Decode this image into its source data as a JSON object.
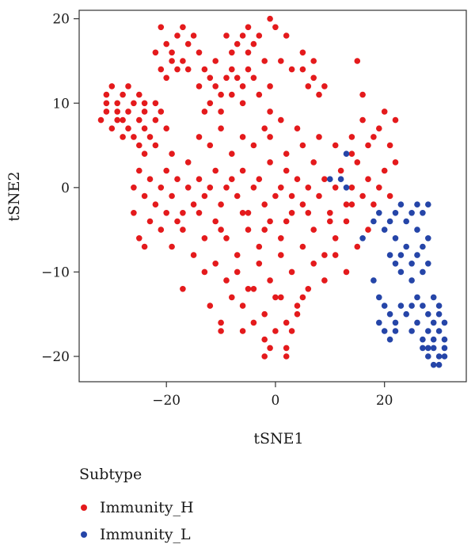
{
  "chart_data": {
    "type": "scatter",
    "title": "",
    "xlabel": "tSNE1",
    "ylabel": "tSNE2",
    "xlim": [
      -36,
      35
    ],
    "ylim": [
      -23,
      21
    ],
    "xticks": [
      -20,
      0,
      20
    ],
    "yticks": [
      -20,
      -10,
      0,
      10,
      20
    ],
    "xtick_labels": [
      "−20",
      "0",
      "20"
    ],
    "ytick_labels": [
      "−20",
      "−10",
      "0",
      "10",
      "20"
    ],
    "grid": false,
    "legend": {
      "title": "Subtype",
      "placement": "bottom-left"
    },
    "series": [
      {
        "name": "Immunity_H",
        "color": "#e41a1c",
        "points": [
          [
            -32,
            8
          ],
          [
            -31,
            9
          ],
          [
            -31,
            11
          ],
          [
            -30,
            7
          ],
          [
            -30,
            12
          ],
          [
            -29,
            9
          ],
          [
            -29,
            10
          ],
          [
            -28,
            8
          ],
          [
            -28,
            11
          ],
          [
            -27,
            7
          ],
          [
            -27,
            9
          ],
          [
            -26,
            10
          ],
          [
            -26,
            6
          ],
          [
            -25,
            8
          ],
          [
            -25,
            11
          ],
          [
            -24,
            7
          ],
          [
            -24,
            9
          ],
          [
            -23,
            6
          ],
          [
            -22,
            8
          ],
          [
            -22,
            10
          ],
          [
            -21,
            9
          ],
          [
            -20,
            7
          ],
          [
            -29,
            8
          ],
          [
            -31,
            10
          ],
          [
            -27,
            12
          ],
          [
            -25,
            5
          ],
          [
            -24,
            10
          ],
          [
            -28,
            6
          ],
          [
            -21,
            19
          ],
          [
            -20,
            17
          ],
          [
            -19,
            15
          ],
          [
            -18,
            14
          ],
          [
            -18,
            18
          ],
          [
            -17,
            19
          ],
          [
            -16,
            17
          ],
          [
            -15,
            18
          ],
          [
            -14,
            16
          ],
          [
            -21,
            14
          ],
          [
            -20,
            13
          ],
          [
            -19,
            16
          ],
          [
            -17,
            15
          ],
          [
            -22,
            16
          ],
          [
            -16,
            14
          ],
          [
            -13,
            9
          ],
          [
            -12,
            10
          ],
          [
            -11,
            12
          ],
          [
            -10,
            11
          ],
          [
            -9,
            13
          ],
          [
            -8,
            14
          ],
          [
            -7,
            13
          ],
          [
            -6,
            12
          ],
          [
            -5,
            14
          ],
          [
            -4,
            13
          ],
          [
            -10,
            9
          ],
          [
            -12,
            13
          ],
          [
            -8,
            11
          ],
          [
            -6,
            10
          ],
          [
            -9,
            18
          ],
          [
            -7,
            17
          ],
          [
            -6,
            18
          ],
          [
            -5,
            16
          ],
          [
            -4,
            17
          ],
          [
            -3,
            18
          ],
          [
            -8,
            16
          ],
          [
            -5,
            19
          ],
          [
            -1,
            20
          ],
          [
            0,
            19
          ],
          [
            -2,
            15
          ],
          [
            -1,
            12
          ],
          [
            1,
            15
          ],
          [
            3,
            14
          ],
          [
            2,
            18
          ],
          [
            5,
            14
          ],
          [
            6,
            12
          ],
          [
            7,
            13
          ],
          [
            8,
            11
          ],
          [
            9,
            12
          ],
          [
            5,
            16
          ],
          [
            7,
            15
          ],
          [
            15,
            15
          ],
          [
            16,
            11
          ],
          [
            14,
            6
          ],
          [
            -13,
            14
          ],
          [
            -11,
            15
          ],
          [
            -14,
            12
          ],
          [
            -3,
            11
          ],
          [
            -1,
            9
          ],
          [
            -26,
            0
          ],
          [
            -25,
            2
          ],
          [
            -24,
            -1
          ],
          [
            -23,
            1
          ],
          [
            -22,
            -2
          ],
          [
            -21,
            0
          ],
          [
            -20,
            2
          ],
          [
            -19,
            -1
          ],
          [
            -18,
            1
          ],
          [
            -17,
            -3
          ],
          [
            -16,
            0
          ],
          [
            -15,
            -2
          ],
          [
            -14,
            1
          ],
          [
            -13,
            -1
          ],
          [
            -12,
            0
          ],
          [
            -11,
            2
          ],
          [
            -10,
            -2
          ],
          [
            -9,
            0
          ],
          [
            -8,
            1
          ],
          [
            -7,
            -1
          ],
          [
            -6,
            2
          ],
          [
            -5,
            -3
          ],
          [
            -4,
            0
          ],
          [
            -3,
            1
          ],
          [
            -2,
            -2
          ],
          [
            -1,
            3
          ],
          [
            0,
            -1
          ],
          [
            1,
            0
          ],
          [
            2,
            2
          ],
          [
            3,
            -1
          ],
          [
            4,
            1
          ],
          [
            5,
            -2
          ],
          [
            6,
            0
          ],
          [
            7,
            3
          ],
          [
            8,
            -1
          ],
          [
            9,
            1
          ],
          [
            10,
            -3
          ],
          [
            11,
            0
          ],
          [
            12,
            2
          ],
          [
            13,
            -2
          ],
          [
            14,
            0
          ],
          [
            15,
            3
          ],
          [
            16,
            -1
          ],
          [
            17,
            1
          ],
          [
            18,
            -2
          ],
          [
            19,
            0
          ],
          [
            20,
            2
          ],
          [
            21,
            -1
          ],
          [
            22,
            3
          ],
          [
            -24,
            4
          ],
          [
            -22,
            5
          ],
          [
            -19,
            4
          ],
          [
            -16,
            3
          ],
          [
            -12,
            5
          ],
          [
            -8,
            4
          ],
          [
            -4,
            5
          ],
          [
            -1,
            6
          ],
          [
            2,
            4
          ],
          [
            5,
            5
          ],
          [
            8,
            6
          ],
          [
            11,
            5
          ],
          [
            14,
            4
          ],
          [
            17,
            5
          ],
          [
            19,
            7
          ],
          [
            21,
            5
          ],
          [
            22,
            8
          ],
          [
            20,
            9
          ],
          [
            18,
            6
          ],
          [
            16,
            8
          ],
          [
            4,
            7
          ],
          [
            1,
            8
          ],
          [
            -2,
            7
          ],
          [
            -6,
            6
          ],
          [
            -10,
            7
          ],
          [
            -14,
            6
          ],
          [
            -26,
            -3
          ],
          [
            -25,
            -6
          ],
          [
            -23,
            -4
          ],
          [
            -21,
            -5
          ],
          [
            -19,
            -7
          ],
          [
            -17,
            -5
          ],
          [
            -15,
            -8
          ],
          [
            -13,
            -6
          ],
          [
            -11,
            -4
          ],
          [
            -9,
            -6
          ],
          [
            -7,
            -8
          ],
          [
            -5,
            -5
          ],
          [
            -3,
            -7
          ],
          [
            -1,
            -4
          ],
          [
            1,
            -6
          ],
          [
            3,
            -3
          ],
          [
            5,
            -7
          ],
          [
            7,
            -5
          ],
          [
            9,
            -8
          ],
          [
            11,
            -6
          ],
          [
            13,
            -4
          ],
          [
            15,
            -7
          ],
          [
            17,
            -5
          ],
          [
            -20,
            -3
          ],
          [
            -18,
            -4
          ],
          [
            -14,
            -3
          ],
          [
            -10,
            -5
          ],
          [
            -6,
            -3
          ],
          [
            -2,
            -5
          ],
          [
            2,
            -4
          ],
          [
            6,
            -3
          ],
          [
            10,
            -4
          ],
          [
            14,
            -2
          ],
          [
            -24,
            -7
          ],
          [
            -17,
            -12
          ],
          [
            -13,
            -10
          ],
          [
            -11,
            -9
          ],
          [
            -9,
            -11
          ],
          [
            -7,
            -10
          ],
          [
            -5,
            -12
          ],
          [
            -3,
            -9
          ],
          [
            -1,
            -11
          ],
          [
            1,
            -8
          ],
          [
            3,
            -10
          ],
          [
            5,
            -13
          ],
          [
            7,
            -9
          ],
          [
            9,
            -11
          ],
          [
            11,
            -8
          ],
          [
            13,
            -10
          ],
          [
            -12,
            -14
          ],
          [
            -10,
            -16
          ],
          [
            -8,
            -13
          ],
          [
            -6,
            -14
          ],
          [
            -4,
            -12
          ],
          [
            -2,
            -15
          ],
          [
            0,
            -13
          ],
          [
            2,
            -16
          ],
          [
            4,
            -14
          ],
          [
            6,
            -12
          ],
          [
            -10,
            -17
          ],
          [
            -4,
            -16
          ],
          [
            -2,
            -18
          ],
          [
            0,
            -17
          ],
          [
            2,
            -19
          ],
          [
            -2,
            -20
          ],
          [
            -1,
            -19
          ],
          [
            2,
            -20
          ],
          [
            4,
            -15
          ],
          [
            1,
            -13
          ],
          [
            3,
            -17
          ],
          [
            -6,
            -17
          ]
        ]
      },
      {
        "name": "Immunity_L",
        "color": "#2545a8",
        "points": [
          [
            13,
            4
          ],
          [
            10,
            1
          ],
          [
            12,
            1
          ],
          [
            13,
            0
          ],
          [
            16,
            -6
          ],
          [
            18,
            -4
          ],
          [
            19,
            -3
          ],
          [
            20,
            -5
          ],
          [
            21,
            -4
          ],
          [
            22,
            -3
          ],
          [
            23,
            -2
          ],
          [
            24,
            -4
          ],
          [
            25,
            -3
          ],
          [
            26,
            -2
          ],
          [
            27,
            -3
          ],
          [
            28,
            -2
          ],
          [
            22,
            -6
          ],
          [
            23,
            -8
          ],
          [
            24,
            -7
          ],
          [
            25,
            -9
          ],
          [
            26,
            -8
          ],
          [
            27,
            -7
          ],
          [
            28,
            -9
          ],
          [
            23,
            -10
          ],
          [
            25,
            -11
          ],
          [
            27,
            -10
          ],
          [
            21,
            -8
          ],
          [
            22,
            -9
          ],
          [
            26,
            -5
          ],
          [
            28,
            -6
          ],
          [
            18,
            -11
          ],
          [
            19,
            -13
          ],
          [
            20,
            -14
          ],
          [
            21,
            -15
          ],
          [
            22,
            -16
          ],
          [
            23,
            -14
          ],
          [
            24,
            -15
          ],
          [
            25,
            -17
          ],
          [
            26,
            -16
          ],
          [
            27,
            -18
          ],
          [
            28,
            -17
          ],
          [
            20,
            -17
          ],
          [
            21,
            -18
          ],
          [
            22,
            -17
          ],
          [
            19,
            -16
          ],
          [
            26,
            -13
          ],
          [
            27,
            -14
          ],
          [
            28,
            -15
          ],
          [
            29,
            -13
          ],
          [
            30,
            -14
          ],
          [
            29,
            -16
          ],
          [
            30,
            -17
          ],
          [
            31,
            -16
          ],
          [
            28,
            -19
          ],
          [
            29,
            -19
          ],
          [
            30,
            -20
          ],
          [
            31,
            -19
          ],
          [
            29,
            -21
          ],
          [
            30,
            -21
          ],
          [
            31,
            -20
          ],
          [
            27,
            -19
          ],
          [
            28,
            -20
          ],
          [
            31,
            -18
          ],
          [
            30,
            -15
          ],
          [
            29,
            -18
          ],
          [
            25,
            -14
          ]
        ]
      }
    ]
  }
}
